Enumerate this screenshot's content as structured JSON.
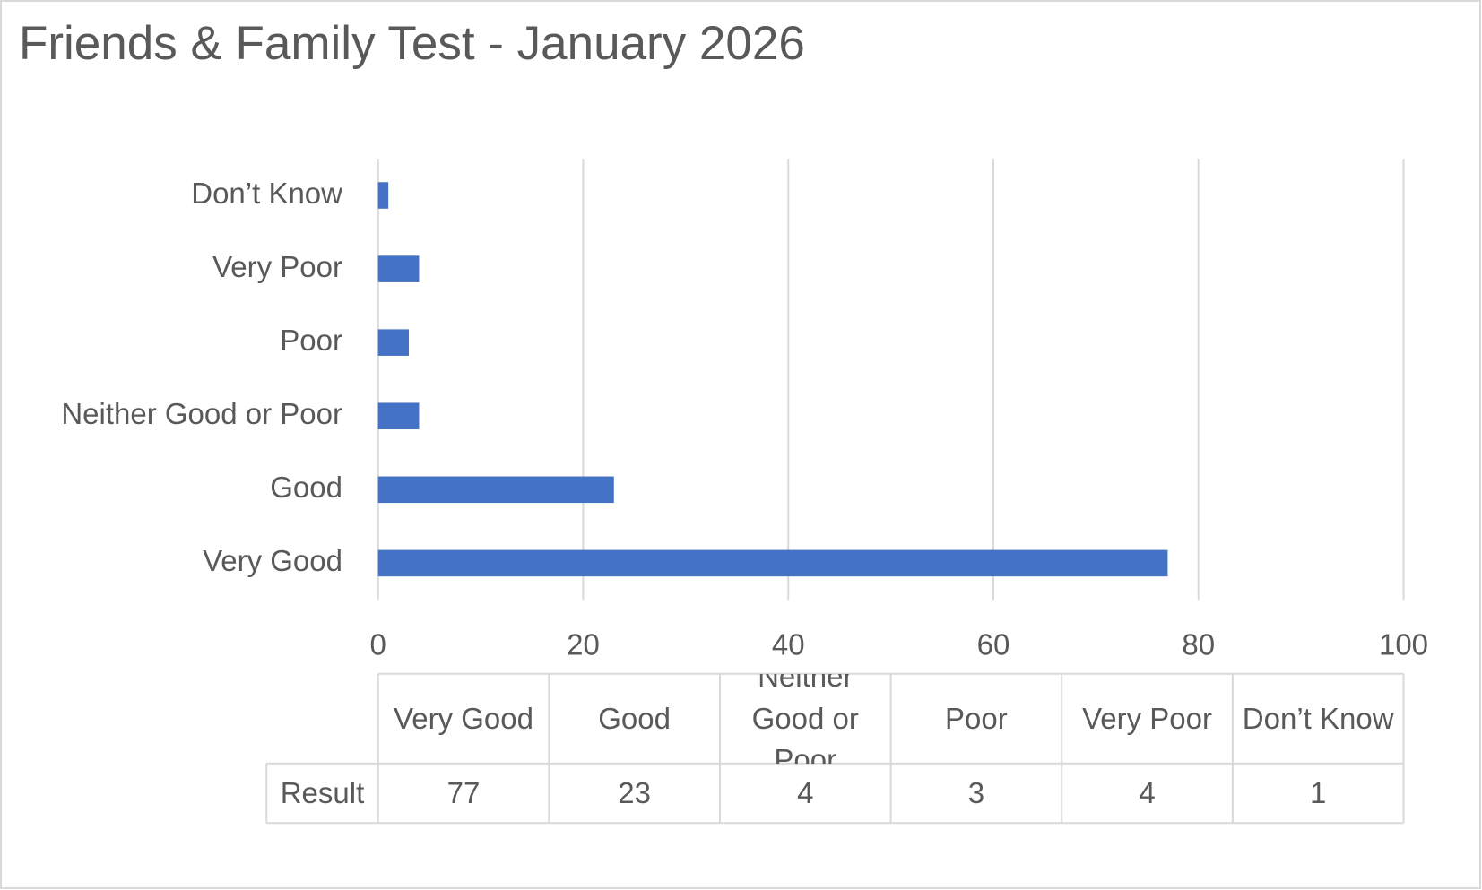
{
  "chart_data": {
    "type": "bar",
    "orientation": "horizontal",
    "title": "Friends & Family Test - January 2026",
    "categories": [
      "Very Good",
      "Good",
      "Neither Good or Poor",
      "Poor",
      "Very Poor",
      "Don’t Know"
    ],
    "series": [
      {
        "name": "Result",
        "color": "#4472c4",
        "values": [
          77,
          23,
          4,
          3,
          4,
          1
        ]
      }
    ],
    "xlim": [
      0,
      100
    ],
    "xticks": [
      0,
      20,
      40,
      60,
      80,
      100
    ],
    "grid": true,
    "data_table": true
  }
}
